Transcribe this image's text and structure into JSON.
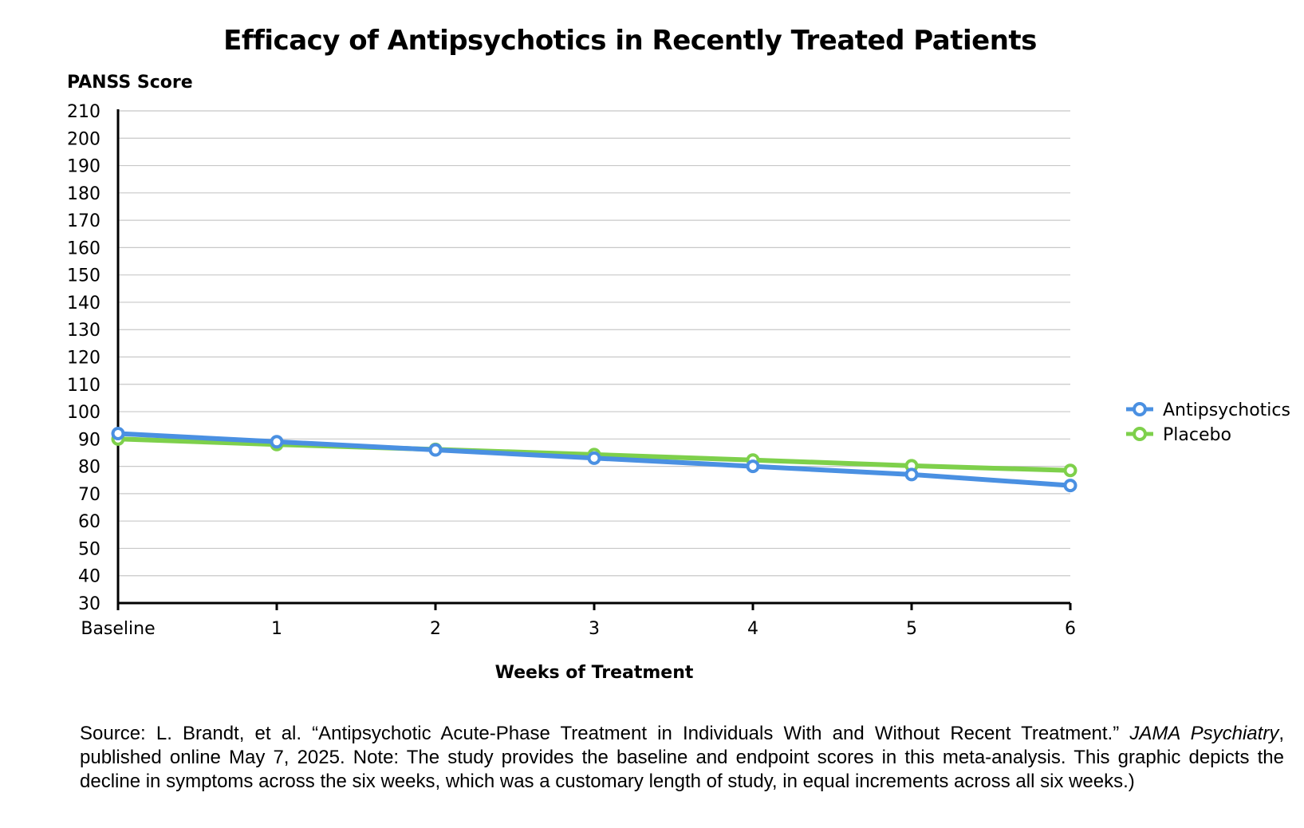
{
  "chart_data": {
    "type": "line",
    "title": "Efficacy of Antipsychotics in Recently Treated Patients",
    "ylabel": "PANSS Score",
    "xlabel": "Weeks of Treatment",
    "categories": [
      "Baseline",
      "1",
      "2",
      "3",
      "4",
      "5",
      "6"
    ],
    "ylim": [
      30,
      210
    ],
    "yticks": [
      30,
      40,
      50,
      60,
      70,
      80,
      90,
      100,
      110,
      120,
      130,
      140,
      150,
      160,
      170,
      180,
      190,
      200,
      210
    ],
    "grid": true,
    "legend_position": "right",
    "series": [
      {
        "name": "Antipsychotics",
        "color": "#4a90e2",
        "values": [
          92,
          89,
          86,
          83,
          80,
          77,
          73
        ]
      },
      {
        "name": "Placebo",
        "color": "#7ed04b",
        "values": [
          90,
          88,
          86.2,
          84.3,
          82.3,
          80.2,
          78.5
        ]
      }
    ]
  },
  "source": {
    "prefix": "Source:  L. Brandt, et al. “Antipsychotic Acute-Phase Treatment in Individuals With and Without Recent Treatment.” ",
    "journal": "JAMA Psychiatry",
    "suffix": ", published online May 7, 2025. Note: The study provides the baseline and endpoint scores in this meta-analysis. This graphic depicts the decline in symptoms across the six weeks, which was a customary length of study, in equal increments across all six weeks.)"
  }
}
